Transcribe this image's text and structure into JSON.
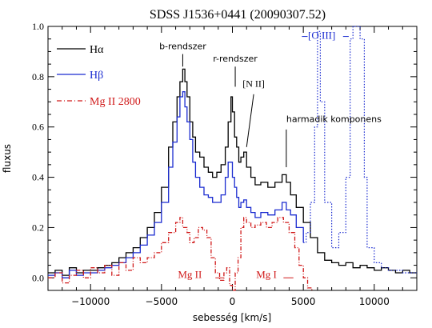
{
  "chart_data": {
    "type": "line",
    "title": "SDSS J1536+0441 (20090307.52)",
    "xlabel": "sebesség [km/s]",
    "ylabel": "fluxus",
    "xlim": [
      -13000,
      13000
    ],
    "ylim": [
      -0.05,
      1.0
    ],
    "xticks": [
      -10000,
      -5000,
      0,
      5000,
      10000
    ],
    "xtick_labels": [
      "−10000",
      "−5000",
      "0",
      "5000",
      "10000"
    ],
    "yticks": [
      0.0,
      0.2,
      0.4,
      0.6,
      0.8,
      1.0
    ],
    "ytick_labels": [
      "0.0",
      "0.2",
      "0.4",
      "0.6",
      "0.8",
      "1.0"
    ],
    "grid": false,
    "legend_position": "top-left",
    "series": [
      {
        "name": "Hα",
        "color": "#000000",
        "style": "solid",
        "x": [
          -13000,
          -12500,
          -12000,
          -11500,
          -11000,
          -10500,
          -10000,
          -9500,
          -9000,
          -8500,
          -8000,
          -7500,
          -7000,
          -6500,
          -6000,
          -5500,
          -5000,
          -4500,
          -4200,
          -3900,
          -3700,
          -3500,
          -3350,
          -3200,
          -3000,
          -2800,
          -2600,
          -2300,
          -2000,
          -1700,
          -1400,
          -1100,
          -800,
          -500,
          -300,
          -100,
          0,
          150,
          300,
          450,
          600,
          800,
          1000,
          1300,
          1600,
          2000,
          2500,
          3000,
          3500,
          3800,
          4100,
          4500,
          5000,
          5500,
          6000,
          6500,
          7000,
          7500,
          8000,
          8500,
          9000,
          9500,
          10000,
          10500,
          11000,
          11500,
          12000,
          12500,
          13000
        ],
        "y": [
          0.02,
          0.03,
          0.01,
          0.04,
          0.02,
          0.03,
          0.03,
          0.04,
          0.05,
          0.06,
          0.08,
          0.1,
          0.12,
          0.16,
          0.2,
          0.26,
          0.36,
          0.52,
          0.62,
          0.72,
          0.78,
          0.83,
          0.78,
          0.72,
          0.62,
          0.56,
          0.5,
          0.48,
          0.44,
          0.42,
          0.4,
          0.42,
          0.45,
          0.52,
          0.62,
          0.72,
          0.66,
          0.56,
          0.52,
          0.46,
          0.48,
          0.5,
          0.44,
          0.4,
          0.37,
          0.38,
          0.36,
          0.38,
          0.41,
          0.38,
          0.33,
          0.28,
          0.22,
          0.16,
          0.1,
          0.07,
          0.06,
          0.05,
          0.06,
          0.04,
          0.05,
          0.04,
          0.03,
          0.04,
          0.03,
          0.02,
          0.03,
          0.02,
          0.02
        ],
        "xdash": [
          600,
          1300
        ],
        "ydash": [
          0.5,
          0.48
        ],
        "note_dotted_segment": true
      },
      {
        "name": "Hβ",
        "color": "#1a2bd0",
        "style": "solid",
        "x": [
          -13000,
          -12500,
          -12000,
          -11500,
          -11000,
          -10500,
          -10000,
          -9500,
          -9000,
          -8500,
          -8000,
          -7500,
          -7000,
          -6500,
          -6000,
          -5500,
          -5000,
          -4500,
          -4200,
          -3900,
          -3700,
          -3500,
          -3350,
          -3200,
          -3000,
          -2800,
          -2600,
          -2300,
          -2000,
          -1700,
          -1400,
          -1100,
          -800,
          -500,
          -300,
          -100,
          0,
          150,
          300,
          450,
          600,
          800,
          1000,
          1300,
          1600,
          2000,
          2500,
          3000,
          3500,
          3800,
          4100,
          4500,
          5000,
          5200,
          5500,
          5800,
          6000,
          6200,
          6500,
          7000,
          7500,
          8000,
          8300,
          8500,
          8700,
          9000,
          9300,
          9500,
          10000,
          10500,
          11000,
          11500,
          12000,
          12500,
          13000
        ],
        "y": [
          0.01,
          0.02,
          0.0,
          0.03,
          0.01,
          0.02,
          0.02,
          0.03,
          0.04,
          0.05,
          0.06,
          0.08,
          0.1,
          0.13,
          0.17,
          0.22,
          0.3,
          0.44,
          0.54,
          0.64,
          0.72,
          0.74,
          0.68,
          0.62,
          0.55,
          0.46,
          0.4,
          0.36,
          0.33,
          0.32,
          0.3,
          0.3,
          0.33,
          0.4,
          0.46,
          0.46,
          0.4,
          0.36,
          0.32,
          0.28,
          0.3,
          0.31,
          0.28,
          0.26,
          0.24,
          0.26,
          0.25,
          0.27,
          0.3,
          0.27,
          0.25,
          0.2,
          0.14,
          0.18,
          0.3,
          0.6,
          0.98,
          0.7,
          0.3,
          0.12,
          0.18,
          0.4,
          0.95,
          1.0,
          1.0,
          0.95,
          0.4,
          0.12,
          0.06,
          0.04,
          0.03,
          0.03,
          0.02,
          0.02,
          0.02
        ],
        "dotted_from_x": 5000
      },
      {
        "name": "Mg II 2800",
        "color": "#d01a1a",
        "style": "dashdot",
        "x": [
          -13000,
          -12500,
          -12000,
          -11500,
          -11000,
          -10500,
          -10000,
          -9500,
          -9000,
          -8500,
          -8000,
          -7500,
          -7000,
          -6500,
          -6000,
          -5500,
          -5000,
          -4500,
          -4000,
          -3700,
          -3500,
          -3200,
          -3000,
          -2700,
          -2400,
          -2100,
          -1800,
          -1500,
          -1200,
          -900,
          -600,
          -400,
          -200,
          0,
          200,
          400,
          600,
          800,
          1000,
          1300,
          1600,
          2000,
          2400,
          2800,
          3200,
          3600,
          4000,
          4400,
          4700,
          5000,
          5300,
          5600
        ],
        "y": [
          0.0,
          0.02,
          -0.02,
          0.01,
          0.03,
          0.0,
          0.04,
          0.02,
          0.05,
          0.01,
          0.06,
          0.03,
          0.08,
          0.06,
          0.08,
          0.1,
          0.14,
          0.18,
          0.22,
          0.24,
          0.2,
          0.18,
          0.14,
          0.16,
          0.2,
          0.19,
          0.16,
          0.08,
          0.02,
          -0.01,
          0.02,
          0.04,
          -0.03,
          -0.05,
          0.02,
          0.08,
          0.2,
          0.24,
          0.22,
          0.2,
          0.21,
          0.22,
          0.2,
          0.22,
          0.24,
          0.22,
          0.18,
          0.12,
          0.05,
          0.0,
          -0.04,
          -0.05
        ]
      }
    ],
    "annotations": [
      {
        "text": "b-rendszer",
        "x": -3500,
        "y": 0.91
      },
      {
        "text": "r-rendszer",
        "x": 200,
        "y": 0.86
      },
      {
        "text": "[N II]",
        "x": 1500,
        "y": 0.76
      },
      {
        "text": "harmadik komponens",
        "x": 3800,
        "y": 0.62
      },
      {
        "text": "[O III]",
        "x": 6300,
        "y": 0.95
      },
      {
        "text": "Mg II",
        "x": -3000,
        "y": 0.0
      },
      {
        "text": "Mg I",
        "x": 2400,
        "y": 0.0
      }
    ]
  }
}
